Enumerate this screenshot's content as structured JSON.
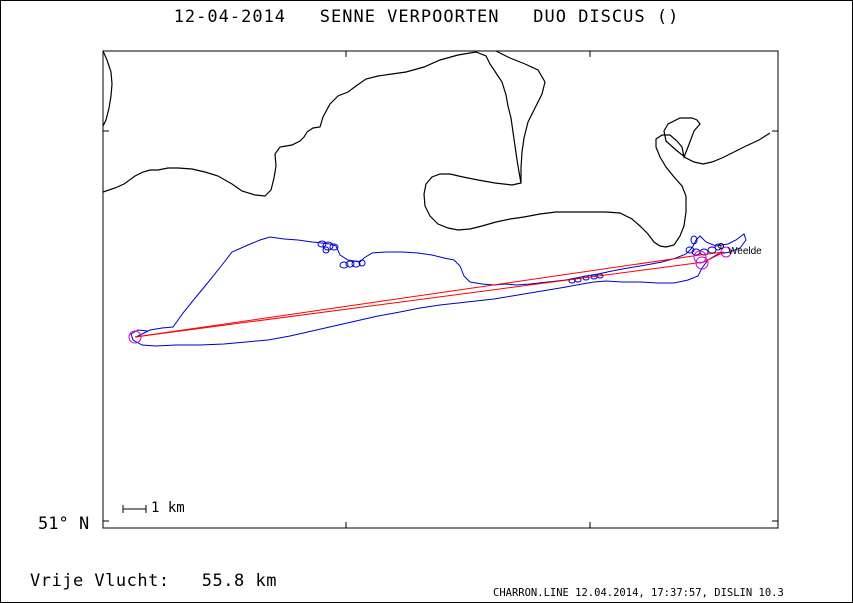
{
  "header": {
    "date": "12-04-2014",
    "pilot": "SENNE VERPOORTEN",
    "glider": "DUO DISCUS ()"
  },
  "map": {
    "latitude_label": "51° N",
    "scale_label": "1 km",
    "turnpoint_label": "Weelde",
    "colors": {
      "border": "#000000",
      "track": "#0000cc",
      "task_line": "#ff0000",
      "turnpoint_circle": "#cc00cc"
    }
  },
  "result": {
    "label": "Vrije Vlucht:",
    "distance": "55.8 km"
  },
  "footer": {
    "text": "CHARRON.LINE 12.04.2014, 17:37:57, DISLIN 10.3"
  }
}
